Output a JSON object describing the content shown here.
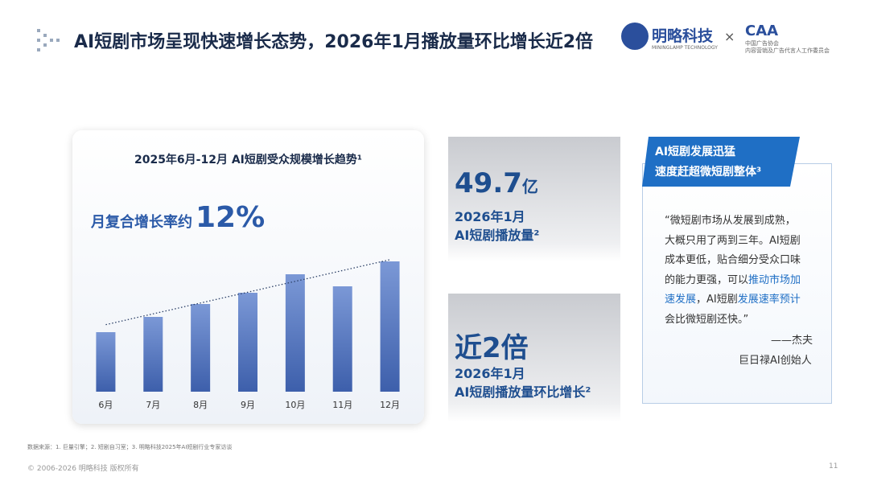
{
  "header": {
    "title": "AI短剧市场呈现快速增长态势，2026年1月播放量环比增长近2倍",
    "logo_text": "明略科技",
    "logo_sub": "MININGLAMP TECHNOLOGY",
    "separator": "×",
    "partner": "CAA",
    "partner_sub": "中国广告协会",
    "partner_sub2": "内容营销及广告代言人工作委员会"
  },
  "chart_data": {
    "type": "bar",
    "title": "2025年6月-12月 AI短剧受众规模增长趋势¹",
    "subtitle_label": "月复合增长率约",
    "subtitle_value": "12%",
    "categories": [
      "6月",
      "7月",
      "8月",
      "9月",
      "10月",
      "11月",
      "12月"
    ],
    "values": [
      74,
      93,
      109,
      123,
      146,
      131,
      162
    ],
    "color": "#4f73bd",
    "ylim": [
      0,
      200
    ],
    "trendline": true
  },
  "stats": [
    {
      "value": "49.7",
      "unit": "亿",
      "line1": "2026年1月",
      "line2": "AI短剧播放量²"
    },
    {
      "value": "近2倍",
      "unit": "",
      "line1": "2026年1月",
      "line2": "AI短剧播放量环比增长²"
    }
  ],
  "quote": {
    "banner": [
      "AI短剧发展迅猛",
      "速度赶超微短剧整体³"
    ],
    "lines": [
      [
        {
          "text": "“微短剧市场从发展到成熟，",
          "color": "#333"
        }
      ],
      [
        {
          "text": "大概只用了两到三年。AI短剧",
          "color": "#333"
        }
      ],
      [
        {
          "text": "成本更低，贴合细分受众口味",
          "color": "#333"
        }
      ],
      [
        {
          "text": "的能力更强，可以",
          "color": "#333"
        },
        {
          "text": "推动市场加",
          "color": "#1f6fc5"
        }
      ],
      [
        {
          "text": "速发展",
          "color": "#1f6fc5"
        },
        {
          "text": "，AI短剧",
          "color": "#333"
        },
        {
          "text": "发展速率预计",
          "color": "#1f6fc5"
        }
      ],
      [
        {
          "text": "会比微短剧还快。”",
          "color": "#333"
        }
      ]
    ],
    "author": "——杰夫",
    "role": "巨日禄AI创始人"
  },
  "footer": {
    "source": "数据来源：1. 巨量引擎；2. 短剧自习室；3. 明略科技2025年AI短剧行业专家访谈",
    "copyright": "© 2006-2026 明略科技 版权所有",
    "page": "11"
  }
}
